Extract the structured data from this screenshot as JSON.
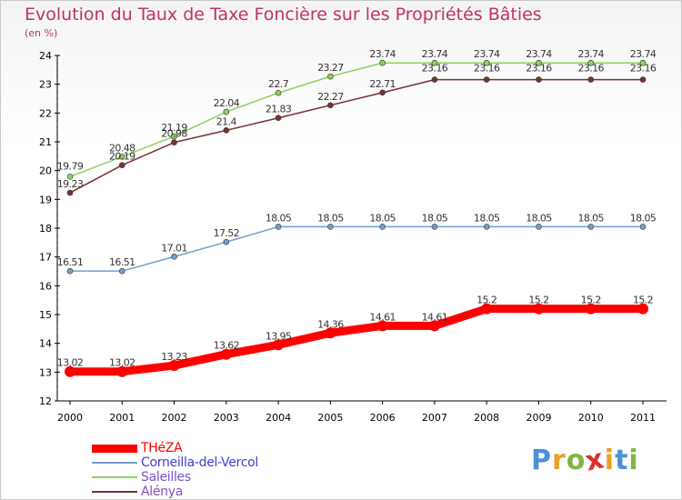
{
  "title": "Evolution du Taux de Taxe Foncière sur les Propriétés Bâties",
  "unit": "(en %)",
  "logo": {
    "text": "Proxiti",
    "colors": [
      "#4a90d9",
      "#e8a020",
      "#7fb542",
      "#d9302a",
      "#e8a020",
      "#4a90d9",
      "#7fb542"
    ]
  },
  "chart_data": {
    "type": "line",
    "x": [
      2000,
      2001,
      2002,
      2003,
      2004,
      2005,
      2006,
      2007,
      2008,
      2009,
      2010,
      2011
    ],
    "ylim": [
      12,
      24
    ],
    "yticks": [
      12,
      13,
      14,
      15,
      16,
      17,
      18,
      19,
      20,
      21,
      22,
      23,
      24
    ],
    "grid": false,
    "legend_position": "bottom-left",
    "series": [
      {
        "name": "THéZA",
        "color": "#ff0000",
        "legend_color": "#ff0000",
        "values": [
          13.02,
          13.02,
          13.23,
          13.62,
          13.95,
          14.36,
          14.61,
          14.61,
          15.2,
          15.2,
          15.2,
          15.2
        ],
        "labels": [
          "13.02",
          "13.02",
          "13.23",
          "13.62",
          "13.95",
          "14.36",
          "14.61",
          "14.61",
          "15.2",
          "15.2",
          "15.2",
          "15.2"
        ]
      },
      {
        "name": "Corneilla-del-Vercol",
        "color": "#6f9fcf",
        "legend_color": "#4040d0",
        "values": [
          16.51,
          16.51,
          17.01,
          17.52,
          18.05,
          18.05,
          18.05,
          18.05,
          18.05,
          18.05,
          18.05,
          18.05
        ],
        "labels": [
          "16.51",
          "16.51",
          "17.01",
          "17.52",
          "18.05",
          "18.05",
          "18.05",
          "18.05",
          "18.05",
          "18.05",
          "18.05",
          "18.05"
        ]
      },
      {
        "name": "Saleilles",
        "color": "#8cd35a",
        "legend_color": "#7a4fd0",
        "values": [
          19.79,
          20.48,
          21.19,
          22.04,
          22.7,
          23.27,
          23.74,
          23.74,
          23.74,
          23.74,
          23.74,
          23.74
        ],
        "labels": [
          "19.79",
          "20.48",
          "21.19",
          "22.04",
          "22.7",
          "23.27",
          "23.74",
          "23.74",
          "23.74",
          "23.74",
          "23.74",
          "23.74"
        ]
      },
      {
        "name": "Alénya",
        "color": "#7a3036",
        "legend_color": "#8050c0",
        "values": [
          19.23,
          20.19,
          20.98,
          21.4,
          21.83,
          22.27,
          22.71,
          23.16,
          23.16,
          23.16,
          23.16,
          23.16
        ],
        "labels": [
          "19.23",
          "20.19",
          "20.98",
          "21.4",
          "21.83",
          "22.27",
          "22.71",
          "23.16",
          "23.16",
          "23.16",
          "23.16",
          "23.16"
        ]
      }
    ]
  }
}
